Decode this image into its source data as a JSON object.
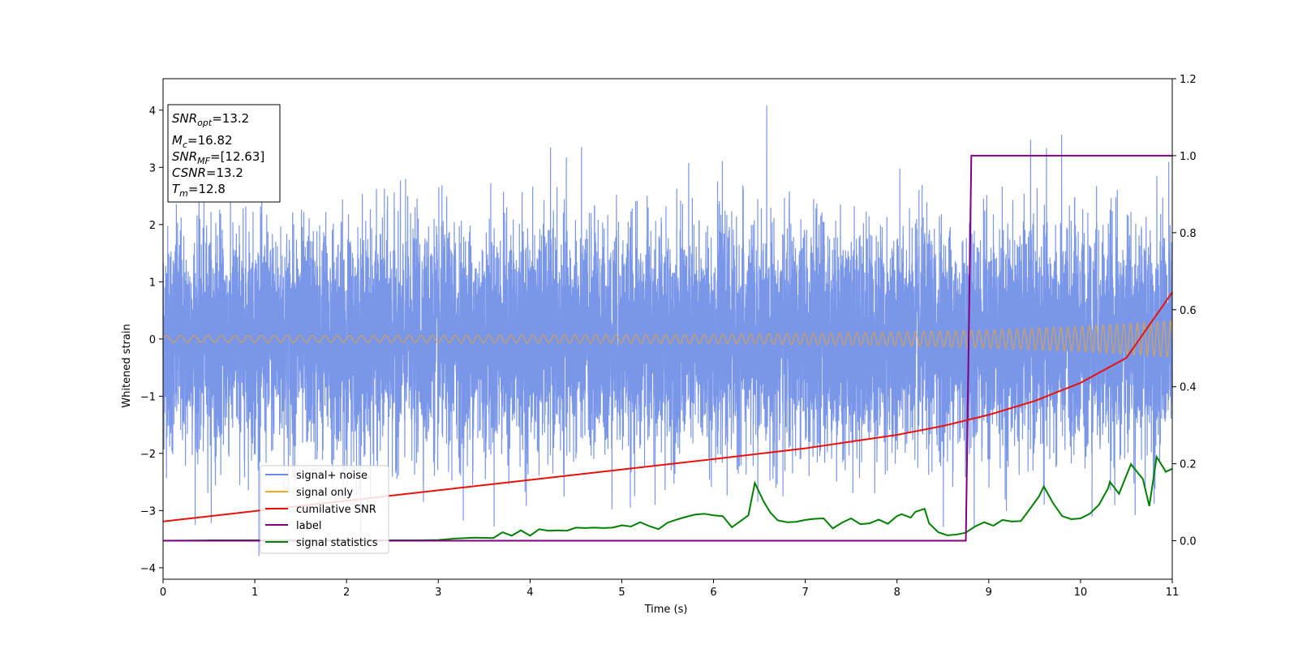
{
  "chart_data": {
    "type": "line",
    "xlabel": "Time (s)",
    "ylabel": "Whitened strain",
    "xlim": [
      0,
      11
    ],
    "ylim_left": [
      -4.2,
      4.55
    ],
    "ylim_right": [
      -0.1,
      1.2
    ],
    "x_ticks": [
      0,
      1,
      2,
      3,
      4,
      5,
      6,
      7,
      8,
      9,
      10,
      11
    ],
    "y_ticks_left": [
      -4,
      -3,
      -2,
      -1,
      0,
      1,
      2,
      3,
      4
    ],
    "y_ticks_left_labels": [
      "−4",
      "−3",
      "−2",
      "−1",
      "0",
      "1",
      "2",
      "3",
      "4"
    ],
    "y_ticks_right": [
      0.0,
      0.2,
      0.4,
      0.6,
      0.8,
      1.0,
      1.2
    ],
    "y_ticks_right_labels": [
      "0.0",
      "0.2",
      "0.4",
      "0.6",
      "0.8",
      "1.0",
      "1.2"
    ],
    "grid": false,
    "legend_position": "lower-left",
    "annotation": {
      "snr_opt": {
        "base": "SNR",
        "sub": "opt",
        "value": "=13.2"
      },
      "mc": {
        "base": "M",
        "sub": "c",
        "value": "=16.82"
      },
      "snr_mf": {
        "base": "SNR",
        "sub": "MF",
        "value": "=[12.63]"
      },
      "csnr": {
        "base": "CSNR",
        "sub": "",
        "value": "=13.2"
      },
      "tm": {
        "base": "T",
        "sub": "m",
        "value": "=12.8"
      }
    },
    "series": [
      {
        "name": "signal+ noise",
        "axis": "left",
        "color": "#6b8be6",
        "noise_std": 0.95,
        "y_range": [
          -3.85,
          4.18
        ]
      },
      {
        "name": "signal only",
        "axis": "left",
        "color": "#f5a623",
        "amplitude_points": {
          "x": [
            0,
            2,
            4,
            6,
            8,
            9,
            10,
            11
          ],
          "y": [
            0.06,
            0.06,
            0.07,
            0.08,
            0.12,
            0.16,
            0.22,
            0.32
          ]
        },
        "frequency_points": {
          "x": [
            0,
            4,
            8,
            11
          ],
          "y": [
            6.5,
            8.5,
            11,
            14
          ]
        }
      },
      {
        "name": "cumilative SNR",
        "axis": "right",
        "color": "#e8120c",
        "x": [
          0,
          1,
          2,
          3,
          4,
          5,
          6,
          7,
          8,
          8.5,
          9,
          9.5,
          10,
          10.5,
          11
        ],
        "y": [
          0.05,
          0.077,
          0.104,
          0.131,
          0.158,
          0.185,
          0.212,
          0.24,
          0.275,
          0.298,
          0.327,
          0.363,
          0.41,
          0.475,
          0.645
        ]
      },
      {
        "name": "label",
        "axis": "right",
        "color": "#800080",
        "x": [
          0,
          8.75,
          8.81,
          11
        ],
        "y": [
          0,
          0,
          1,
          1
        ]
      },
      {
        "name": "signal statistics",
        "axis": "right",
        "color": "#008000",
        "x": [
          0,
          0.5,
          1.0,
          1.5,
          2.0,
          2.5,
          2.8,
          3.0,
          3.2,
          3.4,
          3.6,
          3.7,
          3.8,
          3.9,
          4.0,
          4.1,
          4.2,
          4.3,
          4.4,
          4.5,
          4.6,
          4.7,
          4.8,
          4.9,
          5.0,
          5.1,
          5.2,
          5.3,
          5.4,
          5.5,
          5.6,
          5.7,
          5.8,
          5.9,
          6.0,
          6.1,
          6.2,
          6.3,
          6.38,
          6.45,
          6.55,
          6.62,
          6.7,
          6.8,
          6.9,
          7.0,
          7.1,
          7.2,
          7.3,
          7.4,
          7.5,
          7.6,
          7.7,
          7.8,
          7.9,
          8.0,
          8.05,
          8.15,
          8.2,
          8.3,
          8.35,
          8.45,
          8.55,
          8.65,
          8.75,
          8.85,
          8.95,
          9.05,
          9.15,
          9.25,
          9.35,
          9.45,
          9.55,
          9.6,
          9.7,
          9.8,
          9.9,
          10.0,
          10.1,
          10.2,
          10.3,
          10.32,
          10.42,
          10.55,
          10.68,
          10.75,
          10.83,
          10.93,
          11.0
        ],
        "y": [
          0.0,
          0.001,
          0.001,
          0.001,
          0.001,
          0.001,
          0.001,
          0.002,
          0.006,
          0.008,
          0.007,
          0.022,
          0.013,
          0.027,
          0.013,
          0.03,
          0.026,
          0.027,
          0.026,
          0.034,
          0.033,
          0.034,
          0.033,
          0.034,
          0.04,
          0.037,
          0.048,
          0.038,
          0.03,
          0.047,
          0.055,
          0.062,
          0.068,
          0.07,
          0.066,
          0.064,
          0.035,
          0.052,
          0.066,
          0.15,
          0.1,
          0.073,
          0.053,
          0.048,
          0.049,
          0.054,
          0.057,
          0.058,
          0.032,
          0.047,
          0.058,
          0.043,
          0.045,
          0.055,
          0.044,
          0.064,
          0.069,
          0.06,
          0.075,
          0.083,
          0.045,
          0.022,
          0.014,
          0.016,
          0.021,
          0.037,
          0.048,
          0.039,
          0.054,
          0.05,
          0.051,
          0.083,
          0.116,
          0.141,
          0.098,
          0.064,
          0.056,
          0.058,
          0.07,
          0.093,
          0.136,
          0.153,
          0.122,
          0.199,
          0.16,
          0.09,
          0.218,
          0.179,
          0.187
        ]
      }
    ]
  }
}
